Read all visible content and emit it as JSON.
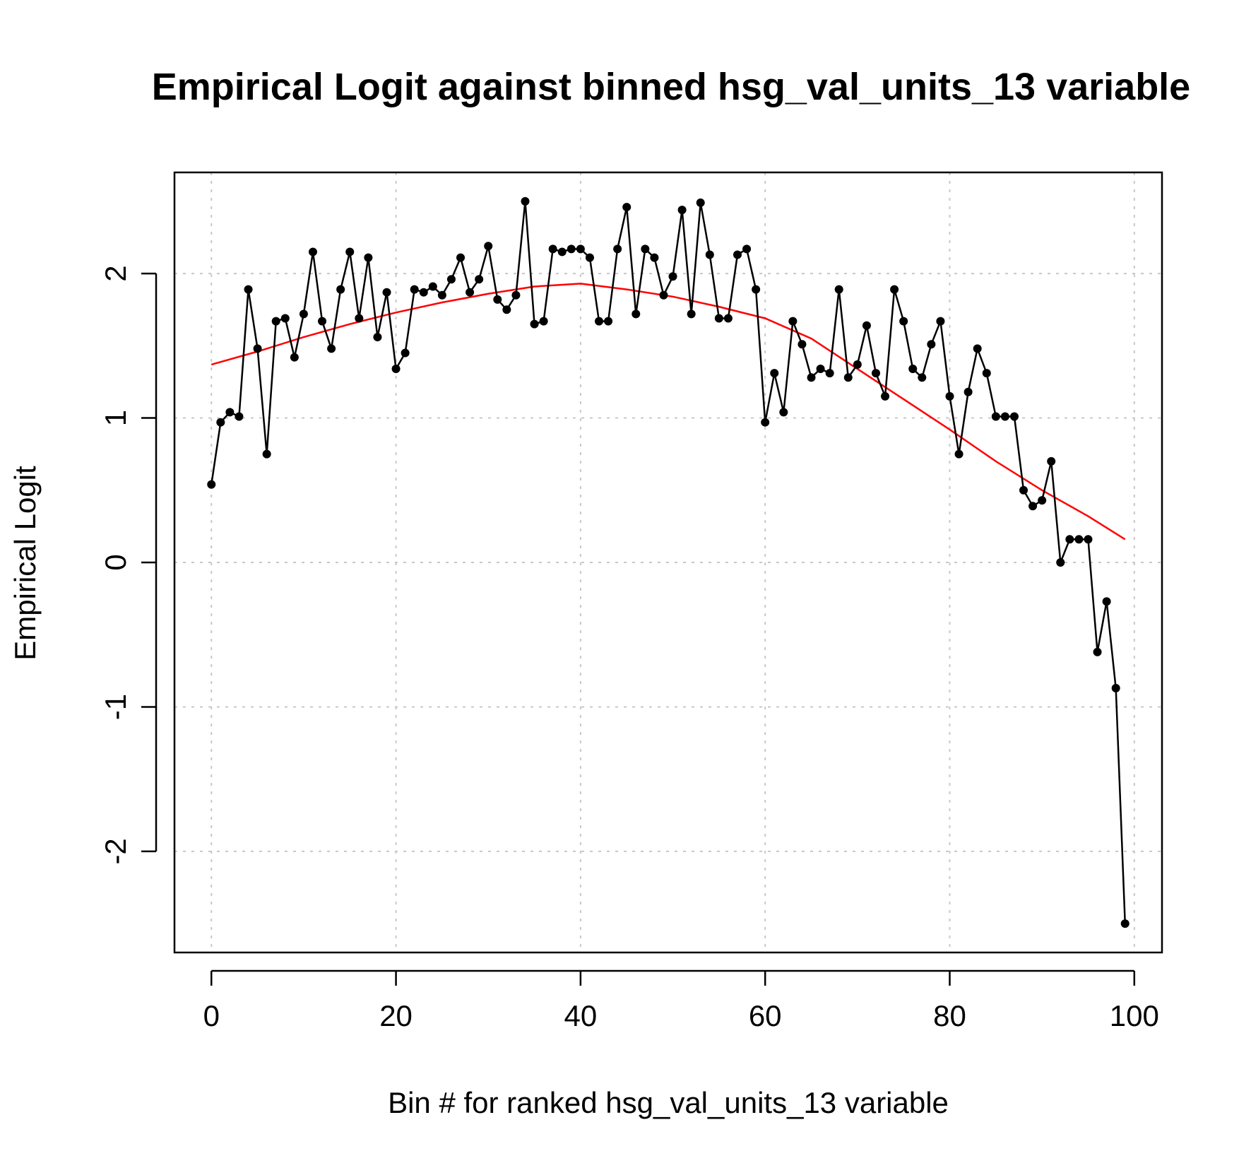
{
  "chart_data": {
    "type": "line",
    "title": "Empirical Logit against binned hsg_val_units_13 variable",
    "xlabel": "Bin # for ranked hsg_val_units_13 variable",
    "ylabel": "Empirical Logit",
    "xlim": [
      -4,
      103
    ],
    "ylim": [
      -2.7,
      2.7
    ],
    "xticks": [
      0,
      20,
      40,
      60,
      80,
      100
    ],
    "xtick_labels": [
      "0",
      "20",
      "40",
      "60",
      "80",
      "100"
    ],
    "yticks": [
      -2,
      -1,
      0,
      1,
      2
    ],
    "ytick_labels": [
      "-2",
      "-1",
      "0",
      "1",
      "2"
    ],
    "grid": true,
    "series": [
      {
        "kind": "line-with-points",
        "color": "#000000",
        "x": [
          0,
          1,
          2,
          3,
          4,
          5,
          6,
          7,
          8,
          9,
          10,
          11,
          12,
          13,
          14,
          15,
          16,
          17,
          18,
          19,
          20,
          21,
          22,
          23,
          24,
          25,
          26,
          27,
          28,
          29,
          30,
          31,
          32,
          33,
          34,
          35,
          36,
          37,
          38,
          39,
          40,
          41,
          42,
          43,
          44,
          45,
          46,
          47,
          48,
          49,
          50,
          51,
          52,
          53,
          54,
          55,
          56,
          57,
          58,
          59,
          60,
          61,
          62,
          63,
          64,
          65,
          66,
          67,
          68,
          69,
          70,
          71,
          72,
          73,
          74,
          75,
          76,
          77,
          78,
          79,
          80,
          81,
          82,
          83,
          84,
          85,
          86,
          87,
          88,
          89,
          90,
          91,
          92,
          93,
          94,
          95,
          96,
          97,
          98,
          99
        ],
        "y": [
          0.54,
          0.97,
          1.04,
          1.01,
          1.89,
          1.48,
          0.75,
          1.67,
          1.69,
          1.42,
          1.72,
          2.15,
          1.67,
          1.48,
          1.89,
          2.15,
          1.69,
          2.11,
          1.56,
          1.87,
          1.34,
          1.45,
          1.89,
          1.87,
          1.91,
          1.85,
          1.96,
          2.11,
          1.87,
          1.96,
          2.19,
          1.82,
          1.75,
          1.85,
          2.5,
          1.65,
          1.67,
          2.17,
          2.15,
          2.17,
          2.17,
          2.11,
          1.67,
          1.67,
          2.17,
          2.46,
          1.72,
          2.17,
          2.11,
          1.85,
          1.98,
          2.44,
          1.72,
          2.49,
          2.13,
          1.69,
          1.69,
          2.13,
          2.17,
          1.89,
          0.97,
          1.31,
          1.04,
          1.67,
          1.51,
          1.28,
          1.34,
          1.31,
          1.89,
          1.28,
          1.37,
          1.64,
          1.31,
          1.15,
          1.89,
          1.67,
          1.34,
          1.28,
          1.51,
          1.67,
          1.15,
          0.75,
          1.18,
          1.48,
          1.31,
          1.01,
          1.01,
          1.01,
          0.5,
          0.39,
          0.43,
          0.7,
          0.0,
          0.16,
          0.16,
          0.16,
          -0.62,
          -0.27,
          -0.87,
          -2.5
        ]
      },
      {
        "kind": "smooth-line",
        "color": "#ff0000",
        "x": [
          0,
          5,
          10,
          15,
          20,
          25,
          30,
          35,
          40,
          45,
          50,
          55,
          60,
          65,
          70,
          75,
          80,
          85,
          90,
          95,
          99
        ],
        "y": [
          1.37,
          1.46,
          1.56,
          1.65,
          1.73,
          1.8,
          1.86,
          1.91,
          1.93,
          1.89,
          1.84,
          1.77,
          1.69,
          1.55,
          1.34,
          1.13,
          0.92,
          0.7,
          0.5,
          0.32,
          0.16
        ]
      }
    ]
  }
}
